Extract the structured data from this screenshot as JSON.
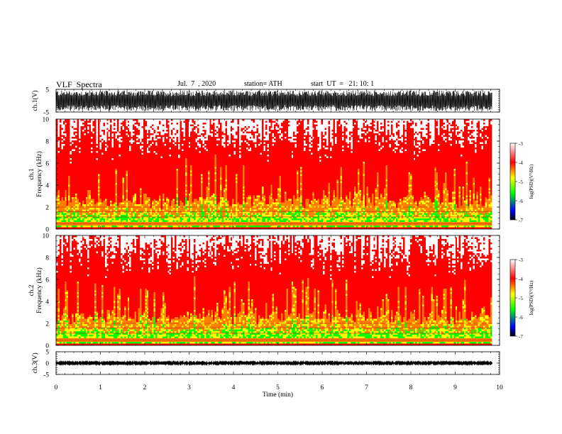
{
  "header": {
    "title": "VLF  Spectra",
    "date": "Jul.  7  , 2020",
    "station": "station= ATH",
    "start": "start  UT  =   21: 10: 1"
  },
  "chart_data": [
    {
      "type": "line",
      "panel": "ch1-waveform",
      "ylabel": "ch.1(V)",
      "ylim": [
        -5,
        5
      ],
      "y_ticks": [
        "5",
        "-5"
      ],
      "xlim": [
        0,
        10
      ],
      "description_series": [
        {
          "values_range": [
            -4.5,
            4.5
          ]
        }
      ]
    },
    {
      "type": "heatmap",
      "panel": "ch1-spectrogram",
      "ylabel_line1": "ch.1",
      "ylabel_line2": "Frequency  (kHz)",
      "ylim": [
        0,
        10
      ],
      "y_ticks": [
        "0",
        "2",
        "4",
        "6",
        "8",
        "10"
      ],
      "xlim": [
        0,
        10
      ],
      "colorbar": {
        "label": "log(PSD)(V²/Hz)",
        "range": [
          -7,
          -3
        ],
        "ticks": [
          "-3",
          "-4",
          "-5",
          "-6",
          "-7"
        ]
      }
    },
    {
      "type": "heatmap",
      "panel": "ch2-spectrogram",
      "ylabel_line1": "ch.2",
      "ylabel_line2": "Frequency  (kHz)",
      "ylim": [
        0,
        10
      ],
      "y_ticks": [
        "0",
        "2",
        "4",
        "6",
        "8",
        "10"
      ],
      "xlim": [
        0,
        10
      ],
      "colorbar": {
        "label": "log(PSD)(V²/Hz)",
        "range": [
          -7,
          -3
        ],
        "ticks": [
          "-3",
          "-4",
          "-5",
          "-6",
          "-7"
        ]
      }
    },
    {
      "type": "line",
      "panel": "ch3-waveform",
      "ylabel": "ch.3(V)",
      "ylim": [
        -5,
        5
      ],
      "y_ticks": [
        "5",
        "0",
        "-5"
      ],
      "xlim": [
        0,
        10
      ],
      "description_series": [
        {
          "values_range": [
            -0.3,
            0.3
          ]
        }
      ]
    }
  ],
  "x_axis": {
    "label": "Time  (min)",
    "ticks": [
      "0",
      "1",
      "2",
      "3",
      "4",
      "5",
      "6",
      "7",
      "8",
      "9",
      "10"
    ],
    "data_end": 9.83
  },
  "colors": {
    "high": "#ff0000",
    "mid": "#ffff00",
    "low": "#00ff00",
    "lower": "#0000ff",
    "lowest": "#000000",
    "white": "#ffffff"
  }
}
